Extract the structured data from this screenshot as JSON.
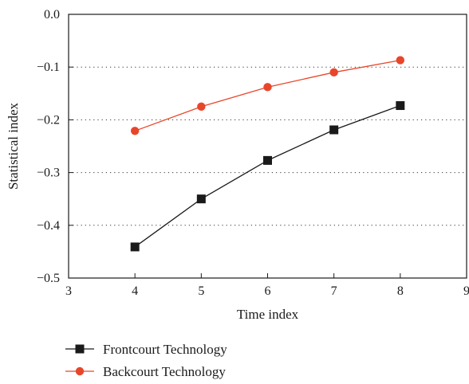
{
  "chart_data": {
    "type": "line",
    "xlabel": "Time index",
    "ylabel": "Statistical index",
    "xlim": [
      3,
      9
    ],
    "ylim": [
      -0.5,
      0.0
    ],
    "x_ticks": [
      3,
      4,
      5,
      6,
      7,
      8,
      9
    ],
    "x_tick_labels": [
      "3",
      "4",
      "5",
      "6",
      "7",
      "8",
      "9"
    ],
    "y_ticks": [
      0.0,
      -0.1,
      -0.2,
      -0.3,
      -0.4,
      -0.5
    ],
    "y_tick_labels": [
      "0.0",
      "−0.1",
      "−0.2",
      "−0.3",
      "−0.4",
      "−0.5"
    ],
    "grid": "horizontal dotted",
    "legend_position": "bottom-left, below plot",
    "series": [
      {
        "name": "Frontcourt Technology",
        "marker": "square",
        "color": "#1a1a1a",
        "x": [
          4,
          5,
          6,
          7,
          8
        ],
        "y": [
          -0.441,
          -0.35,
          -0.277,
          -0.219,
          -0.173
        ]
      },
      {
        "name": "Backcourt Technology",
        "marker": "circle",
        "color": "#e8462a",
        "x": [
          4,
          5,
          6,
          7,
          8
        ],
        "y": [
          -0.221,
          -0.175,
          -0.138,
          -0.11,
          -0.087
        ]
      }
    ]
  }
}
